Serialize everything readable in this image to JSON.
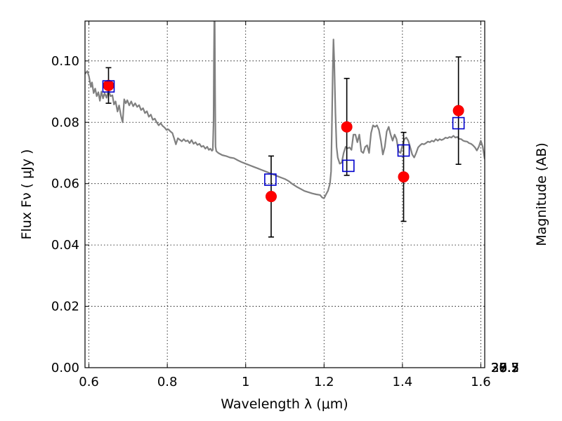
{
  "chart_data": {
    "type": "scatter",
    "xlabel": "Wavelength  λ (μm)",
    "ylabel": "Flux  Fν  ( μJy )",
    "ylabel_right": "Magnitude (AB)",
    "xlim": [
      0.59,
      1.61
    ],
    "ylim": [
      0.0,
      0.113
    ],
    "grid": true,
    "x_ticks": [
      {
        "value": 0.6,
        "label": "0.6"
      },
      {
        "value": 0.8,
        "label": "0.8"
      },
      {
        "value": 1.0,
        "label": "1"
      },
      {
        "value": 1.2,
        "label": "1.2"
      },
      {
        "value": 1.4,
        "label": "1.4"
      },
      {
        "value": 1.6,
        "label": "1.6"
      }
    ],
    "y_ticks": [
      {
        "value": 0.0,
        "label": "0.00"
      },
      {
        "value": 0.02,
        "label": "0.02"
      },
      {
        "value": 0.04,
        "label": "0.04"
      },
      {
        "value": 0.06,
        "label": "0.06"
      },
      {
        "value": 0.08,
        "label": "0.08"
      },
      {
        "value": 0.1,
        "label": "0.10"
      }
    ],
    "right_ticks": [
      {
        "value": 26.3,
        "label": "26.3"
      },
      {
        "value": 26.5,
        "label": "26.5"
      },
      {
        "value": 26.7,
        "label": "26.7"
      },
      {
        "value": 27.0,
        "label": "27"
      },
      {
        "value": 27.2,
        "label": "27.2"
      },
      {
        "value": 27.5,
        "label": "27.5"
      },
      {
        "value": 28.0,
        "label": "28"
      },
      {
        "value": 28.5,
        "label": "28.5"
      },
      {
        "value": 29.0,
        "label": "29"
      },
      {
        "value": 30.0,
        "label": "30"
      }
    ],
    "spectrum": {
      "color": "#808080",
      "points": [
        [
          0.59,
          0.0958
        ],
        [
          0.596,
          0.0967
        ],
        [
          0.6,
          0.095
        ],
        [
          0.605,
          0.0915
        ],
        [
          0.608,
          0.093
        ],
        [
          0.612,
          0.0895
        ],
        [
          0.616,
          0.091
        ],
        [
          0.62,
          0.0885
        ],
        [
          0.624,
          0.0898
        ],
        [
          0.628,
          0.087
        ],
        [
          0.632,
          0.09
        ],
        [
          0.636,
          0.0878
        ],
        [
          0.64,
          0.0895
        ],
        [
          0.645,
          0.088
        ],
        [
          0.65,
          0.0905
        ],
        [
          0.655,
          0.0885
        ],
        [
          0.66,
          0.0888
        ],
        [
          0.664,
          0.0858
        ],
        [
          0.668,
          0.0868
        ],
        [
          0.673,
          0.0835
        ],
        [
          0.677,
          0.0855
        ],
        [
          0.682,
          0.082
        ],
        [
          0.686,
          0.08
        ],
        [
          0.69,
          0.0875
        ],
        [
          0.694,
          0.0862
        ],
        [
          0.698,
          0.0872
        ],
        [
          0.703,
          0.0855
        ],
        [
          0.708,
          0.0868
        ],
        [
          0.713,
          0.0852
        ],
        [
          0.718,
          0.0862
        ],
        [
          0.723,
          0.085
        ],
        [
          0.728,
          0.0856
        ],
        [
          0.733,
          0.084
        ],
        [
          0.738,
          0.0846
        ],
        [
          0.743,
          0.083
        ],
        [
          0.748,
          0.0836
        ],
        [
          0.753,
          0.0818
        ],
        [
          0.758,
          0.0825
        ],
        [
          0.763,
          0.0808
        ],
        [
          0.768,
          0.0812
        ],
        [
          0.773,
          0.08
        ],
        [
          0.778,
          0.079
        ],
        [
          0.783,
          0.0797
        ],
        [
          0.788,
          0.0788
        ],
        [
          0.793,
          0.0783
        ],
        [
          0.798,
          0.0775
        ],
        [
          0.803,
          0.0777
        ],
        [
          0.808,
          0.077
        ],
        [
          0.813,
          0.0765
        ],
        [
          0.818,
          0.0745
        ],
        [
          0.822,
          0.0728
        ],
        [
          0.827,
          0.0748
        ],
        [
          0.832,
          0.0743
        ],
        [
          0.837,
          0.0738
        ],
        [
          0.842,
          0.0745
        ],
        [
          0.847,
          0.0738
        ],
        [
          0.852,
          0.0741
        ],
        [
          0.857,
          0.0732
        ],
        [
          0.862,
          0.0742
        ],
        [
          0.867,
          0.073
        ],
        [
          0.872,
          0.0735
        ],
        [
          0.877,
          0.0726
        ],
        [
          0.882,
          0.073
        ],
        [
          0.887,
          0.072
        ],
        [
          0.892,
          0.0723
        ],
        [
          0.897,
          0.0714
        ],
        [
          0.902,
          0.072
        ],
        [
          0.906,
          0.071
        ],
        [
          0.91,
          0.0714
        ],
        [
          0.914,
          0.0707
        ],
        [
          0.916,
          0.071
        ],
        [
          0.918,
          0.08
        ],
        [
          0.919,
          0.1
        ],
        [
          0.92,
          0.115
        ],
        [
          0.921,
          0.115
        ],
        [
          0.922,
          0.09
        ],
        [
          0.923,
          0.072
        ],
        [
          0.925,
          0.0706
        ],
        [
          0.93,
          0.07
        ],
        [
          0.94,
          0.0693
        ],
        [
          0.95,
          0.069
        ],
        [
          0.96,
          0.0685
        ],
        [
          0.97,
          0.0683
        ],
        [
          0.98,
          0.0676
        ],
        [
          0.99,
          0.067
        ],
        [
          1.0,
          0.0665
        ],
        [
          1.01,
          0.066
        ],
        [
          1.02,
          0.0655
        ],
        [
          1.03,
          0.065
        ],
        [
          1.04,
          0.0645
        ],
        [
          1.05,
          0.064
        ],
        [
          1.06,
          0.0635
        ],
        [
          1.07,
          0.063
        ],
        [
          1.08,
          0.0625
        ],
        [
          1.09,
          0.062
        ],
        [
          1.1,
          0.0615
        ],
        [
          1.11,
          0.0608
        ],
        [
          1.12,
          0.0598
        ],
        [
          1.13,
          0.059
        ],
        [
          1.14,
          0.0583
        ],
        [
          1.15,
          0.0576
        ],
        [
          1.16,
          0.0572
        ],
        [
          1.17,
          0.0568
        ],
        [
          1.18,
          0.0565
        ],
        [
          1.19,
          0.0563
        ],
        [
          1.195,
          0.0555
        ],
        [
          1.2,
          0.0552
        ],
        [
          1.205,
          0.0565
        ],
        [
          1.21,
          0.0577
        ],
        [
          1.215,
          0.06
        ],
        [
          1.218,
          0.064
        ],
        [
          1.22,
          0.078
        ],
        [
          1.222,
          0.096
        ],
        [
          1.224,
          0.107
        ],
        [
          1.226,
          0.1
        ],
        [
          1.229,
          0.083
        ],
        [
          1.232,
          0.072
        ],
        [
          1.235,
          0.0685
        ],
        [
          1.24,
          0.0665
        ],
        [
          1.245,
          0.0668
        ],
        [
          1.25,
          0.07
        ],
        [
          1.255,
          0.072
        ],
        [
          1.26,
          0.0715
        ],
        [
          1.265,
          0.0718
        ],
        [
          1.27,
          0.071
        ],
        [
          1.275,
          0.076
        ],
        [
          1.28,
          0.076
        ],
        [
          1.285,
          0.0735
        ],
        [
          1.29,
          0.076
        ],
        [
          1.295,
          0.0705
        ],
        [
          1.3,
          0.07
        ],
        [
          1.305,
          0.072
        ],
        [
          1.31,
          0.0725
        ],
        [
          1.315,
          0.07
        ],
        [
          1.32,
          0.0765
        ],
        [
          1.325,
          0.079
        ],
        [
          1.33,
          0.0785
        ],
        [
          1.335,
          0.079
        ],
        [
          1.34,
          0.0775
        ],
        [
          1.345,
          0.074
        ],
        [
          1.35,
          0.0695
        ],
        [
          1.355,
          0.072
        ],
        [
          1.36,
          0.077
        ],
        [
          1.365,
          0.0785
        ],
        [
          1.37,
          0.076
        ],
        [
          1.375,
          0.074
        ],
        [
          1.38,
          0.076
        ],
        [
          1.385,
          0.0745
        ],
        [
          1.39,
          0.0705
        ],
        [
          1.395,
          0.07
        ],
        [
          1.4,
          0.0725
        ],
        [
          1.405,
          0.0745
        ],
        [
          1.41,
          0.075
        ],
        [
          1.415,
          0.074
        ],
        [
          1.42,
          0.0718
        ],
        [
          1.425,
          0.0695
        ],
        [
          1.43,
          0.0685
        ],
        [
          1.435,
          0.07
        ],
        [
          1.44,
          0.0718
        ],
        [
          1.445,
          0.0725
        ],
        [
          1.45,
          0.073
        ],
        [
          1.455,
          0.0728
        ],
        [
          1.46,
          0.0732
        ],
        [
          1.465,
          0.0737
        ],
        [
          1.47,
          0.0735
        ],
        [
          1.475,
          0.074
        ],
        [
          1.48,
          0.0737
        ],
        [
          1.485,
          0.0745
        ],
        [
          1.49,
          0.074
        ],
        [
          1.495,
          0.0745
        ],
        [
          1.5,
          0.0742
        ],
        [
          1.505,
          0.0745
        ],
        [
          1.51,
          0.075
        ],
        [
          1.515,
          0.0748
        ],
        [
          1.52,
          0.0752
        ],
        [
          1.525,
          0.075
        ],
        [
          1.53,
          0.0756
        ],
        [
          1.535,
          0.075
        ],
        [
          1.54,
          0.0752
        ],
        [
          1.545,
          0.0746
        ],
        [
          1.55,
          0.0745
        ],
        [
          1.555,
          0.074
        ],
        [
          1.56,
          0.0738
        ],
        [
          1.565,
          0.0737
        ],
        [
          1.57,
          0.0732
        ],
        [
          1.575,
          0.073
        ],
        [
          1.58,
          0.0725
        ],
        [
          1.585,
          0.0718
        ],
        [
          1.59,
          0.0708
        ],
        [
          1.595,
          0.072
        ],
        [
          1.6,
          0.074
        ],
        [
          1.605,
          0.072
        ],
        [
          1.61,
          0.068
        ]
      ]
    },
    "observations": {
      "color": "#ff0000",
      "points": [
        {
          "x": 0.65,
          "y": 0.092,
          "yerr": 0.0058
        },
        {
          "x": 1.065,
          "y": 0.0558,
          "yerr": 0.0132
        },
        {
          "x": 1.258,
          "y": 0.0785,
          "yerr": 0.0158
        },
        {
          "x": 1.403,
          "y": 0.0622,
          "yerr": 0.0145
        },
        {
          "x": 1.543,
          "y": 0.0838,
          "yerr": 0.0175
        }
      ]
    },
    "model_photometry": {
      "color": "#0000cc",
      "points": [
        {
          "x": 0.65,
          "y": 0.0917
        },
        {
          "x": 1.063,
          "y": 0.0613
        },
        {
          "x": 1.262,
          "y": 0.0658
        },
        {
          "x": 1.403,
          "y": 0.0708
        },
        {
          "x": 1.543,
          "y": 0.0797
        }
      ]
    }
  }
}
